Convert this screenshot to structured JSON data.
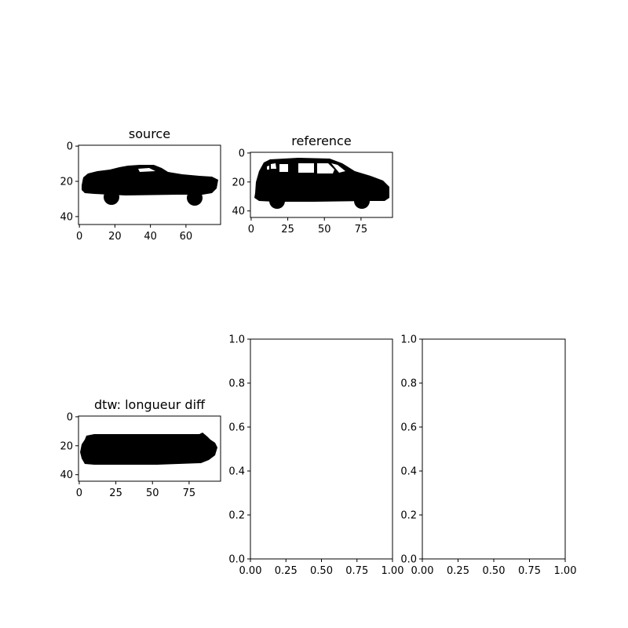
{
  "chart_data": [
    {
      "type": "image",
      "title": "source",
      "image": "black car silhouette (sports car, side view)",
      "xticks": [
        0,
        20,
        40,
        60
      ],
      "yticks": [
        0,
        20,
        40
      ],
      "xlim": [
        -0.5,
        79.5
      ],
      "ylim": [
        44.5,
        -0.5
      ]
    },
    {
      "type": "image",
      "title": "reference",
      "image": "black car silhouette (minivan, side view)",
      "xticks": [
        0,
        25,
        50,
        75
      ],
      "yticks": [
        0,
        20,
        40
      ],
      "xlim": [
        -0.5,
        96.5
      ],
      "ylim": [
        44.5,
        -0.5
      ]
    },
    {
      "type": "image",
      "title": "dtw: longueur diff",
      "image": "black elongated bar-shaped silhouette",
      "xticks": [
        0,
        25,
        50,
        75
      ],
      "yticks": [
        0,
        20,
        40
      ],
      "xlim": [
        -0.5,
        96.5
      ],
      "ylim": [
        44.5,
        -0.5
      ]
    },
    {
      "type": "line",
      "title": "",
      "series": [],
      "xticks": [
        "0.00",
        "0.25",
        "0.50",
        "0.75",
        "1.00"
      ],
      "yticks": [
        "0.0",
        "0.2",
        "0.4",
        "0.6",
        "0.8",
        "1.0"
      ],
      "xlim": [
        0,
        1
      ],
      "ylim": [
        0,
        1
      ]
    },
    {
      "type": "line",
      "title": "",
      "series": [],
      "xticks": [
        "0.00",
        "0.25",
        "0.50",
        "0.75",
        "1.00"
      ],
      "yticks": [
        "0.0",
        "0.2",
        "0.4",
        "0.6",
        "0.8",
        "1.0"
      ],
      "xlim": [
        0,
        1
      ],
      "ylim": [
        0,
        1
      ]
    }
  ]
}
